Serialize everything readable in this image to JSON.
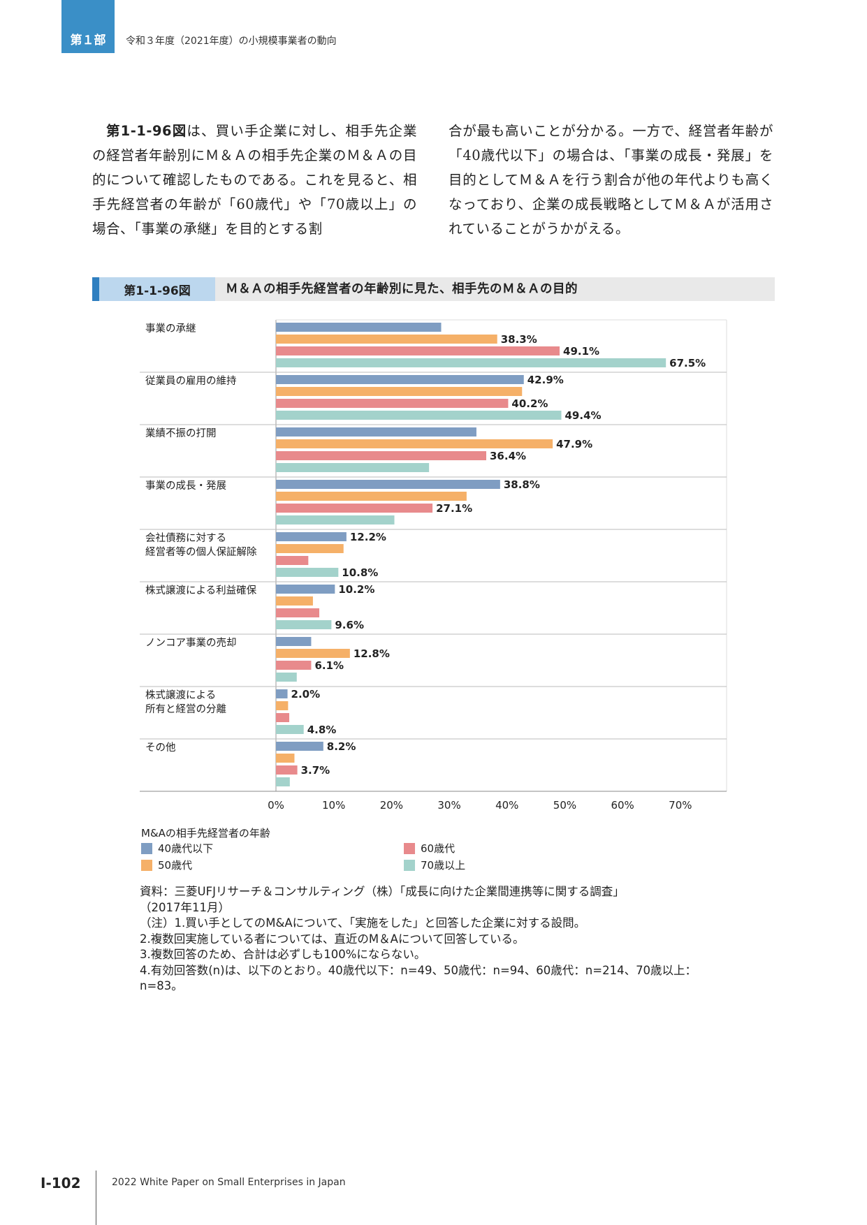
{
  "header": {
    "part_label": "第１部",
    "section_title": "令和３年度（2021年度）の小規模事業者の動向"
  },
  "body_text": {
    "left_ref": "第1-1-96図",
    "left": "は、買い手企業に対し、相手先企業の経営者年齢別にＭ＆Ａの相手先企業のＭ＆Ａの目的について確認したものである。これを見ると、相手先経営者の年齢が「60歳代」や「70歳以上」の場合、「事業の承継」を目的とする割",
    "right": "合が最も高いことが分かる。一方で、経営者年齢が「40歳代以下」の場合は、「事業の成長・発展」を目的としてＭ＆Ａを行う割合が他の年代よりも高くなっており、企業の成長戦略としてＭ＆Ａが活用されていることがうかがえる。"
  },
  "figure": {
    "number": "第1-1-96図",
    "title": "Ｍ＆Ａの相手先経営者の年齢別に見た、相手先のＭ＆Ａの目的"
  },
  "chart_data": {
    "type": "bar",
    "orientation": "horizontal",
    "categories": [
      [
        "事業の承継"
      ],
      [
        "従業員の雇用の維持"
      ],
      [
        "業績不振の打開"
      ],
      [
        "事業の成長・発展"
      ],
      [
        "会社債務に対する",
        "経営者等の個人保証解除"
      ],
      [
        "株式譲渡による利益確保"
      ],
      [
        "ノンコア事業の売却"
      ],
      [
        "株式譲渡による",
        "所有と経営の分離"
      ],
      [
        "その他"
      ]
    ],
    "series": [
      {
        "name": "40歳代以下",
        "color": "#7f9dc2",
        "values": [
          28.6,
          42.9,
          34.7,
          38.8,
          12.2,
          10.2,
          6.1,
          2.0,
          8.2
        ]
      },
      {
        "name": "50歳代",
        "color": "#f5b068",
        "values": [
          38.3,
          42.6,
          47.9,
          33.0,
          11.7,
          6.4,
          12.8,
          2.1,
          3.2
        ]
      },
      {
        "name": "60歳代",
        "color": "#e88a8c",
        "values": [
          49.1,
          40.2,
          36.4,
          27.1,
          5.6,
          7.5,
          6.1,
          2.3,
          3.7
        ]
      },
      {
        "name": "70歳以上",
        "color": "#a3d2cb",
        "values": [
          67.5,
          49.4,
          26.5,
          20.5,
          10.8,
          9.6,
          3.6,
          4.8,
          2.4
        ]
      }
    ],
    "labeled": [
      [
        false,
        true,
        true,
        true
      ],
      [
        true,
        false,
        true,
        true
      ],
      [
        false,
        true,
        true,
        false
      ],
      [
        true,
        false,
        true,
        false
      ],
      [
        true,
        false,
        false,
        true
      ],
      [
        true,
        false,
        false,
        true
      ],
      [
        false,
        true,
        true,
        false
      ],
      [
        true,
        false,
        false,
        true
      ],
      [
        true,
        false,
        true,
        false
      ]
    ],
    "x_ticks": [
      "0%",
      "10%",
      "20%",
      "30%",
      "40%",
      "50%",
      "60%",
      "70%"
    ],
    "xlim": [
      0,
      78
    ],
    "xlabel": "",
    "ylabel": "",
    "grid": false,
    "legend_title": "M&Aの相手先経営者の年齢",
    "legend_position": "bottom-left"
  },
  "notes": {
    "source": "資料：三菱UFJリサーチ＆コンサルティング（株）「成長に向けた企業間連携等に関する調査」",
    "source_date": "（2017年11月）",
    "note1": "（注）1.買い手としてのM&Aについて、「実施をした」と回答した企業に対する設問。",
    "note2": "2.複数回実施している者については、直近のM＆Aについて回答している。",
    "note3": "3.複数回答のため、合計は必ずしも100%にならない。",
    "note4": "4.有効回答数(n)は、以下のとおり。40歳代以下：n=49、50歳代：n=94、60歳代：n=214、70歳以上：n=83。"
  },
  "footer": {
    "page": "I-102",
    "text": "2022 White Paper on Small Enterprises in Japan"
  }
}
